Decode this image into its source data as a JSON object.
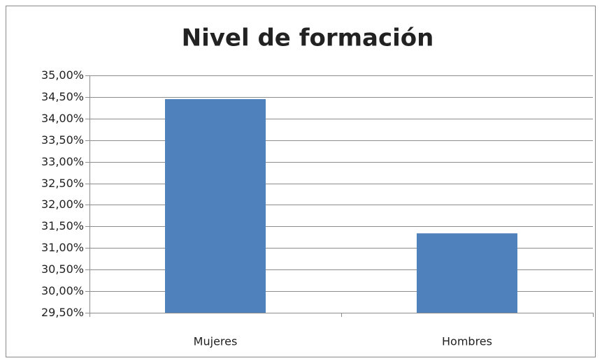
{
  "chart_data": {
    "type": "bar",
    "title": "Nivel de formación",
    "categories": [
      "Mujeres",
      "Hombres"
    ],
    "values": [
      34.45,
      31.34
    ],
    "color": "#4f81bd",
    "ylim": [
      29.5,
      35.0
    ],
    "yticks": [
      {
        "value": 29.5,
        "label": "29,50%"
      },
      {
        "value": 30.0,
        "label": "30,00%"
      },
      {
        "value": 30.5,
        "label": "30,50%"
      },
      {
        "value": 31.0,
        "label": "31,00%"
      },
      {
        "value": 31.5,
        "label": "31,50%"
      },
      {
        "value": 32.0,
        "label": "32,00%"
      },
      {
        "value": 32.5,
        "label": "32,50%"
      },
      {
        "value": 33.0,
        "label": "33,00%"
      },
      {
        "value": 33.5,
        "label": "33,50%"
      },
      {
        "value": 34.0,
        "label": "34,00%"
      },
      {
        "value": 34.5,
        "label": "34,50%"
      },
      {
        "value": 35.0,
        "label": "35,00%"
      }
    ],
    "grid": true
  }
}
